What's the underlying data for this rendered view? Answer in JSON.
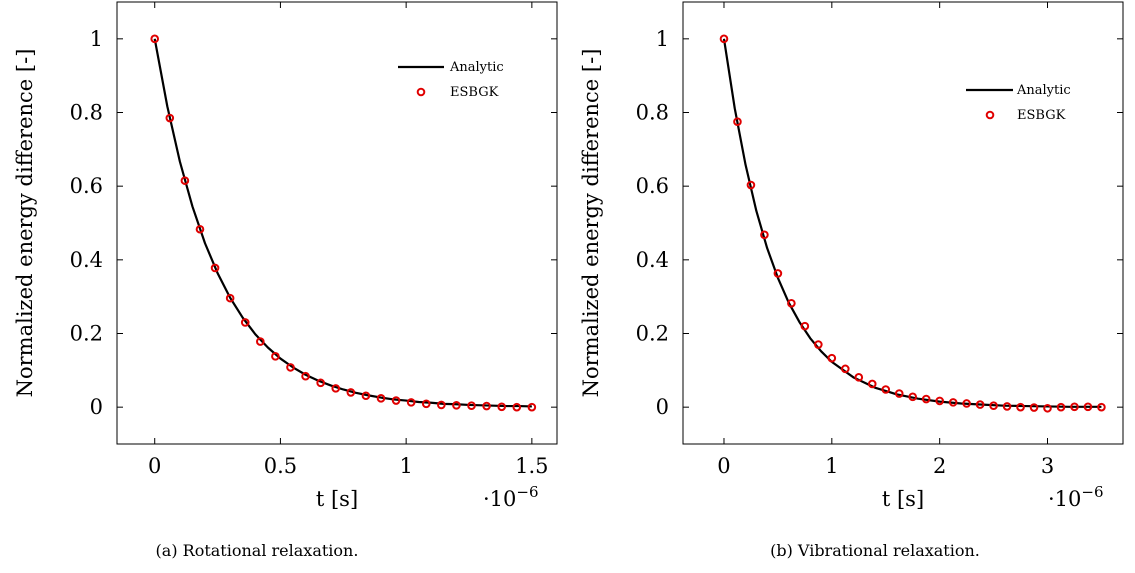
{
  "chart_data": [
    {
      "type": "line",
      "caption": "(a) Rotational relaxation.",
      "xlabel": "t [s]",
      "x_multiplier": "·10",
      "x_multiplier_exp": "−6",
      "ylabel": "Normalized energy difference [-]",
      "xlim": [
        -0.15,
        1.6
      ],
      "ylim": [
        -0.1,
        1.1
      ],
      "xticks": [
        0,
        0.5,
        1,
        1.5
      ],
      "xtick_labels": [
        "0",
        "0.5",
        "1",
        "1.5"
      ],
      "yticks": [
        0,
        0.2,
        0.4,
        0.6,
        0.8,
        1
      ],
      "ytick_labels": [
        "0",
        "0.2",
        "0.4",
        "0.6",
        "0.8",
        "1"
      ],
      "legend_position": "top-right",
      "grid": false,
      "series": [
        {
          "name": "Analytic",
          "kind": "line",
          "color": "#000000",
          "x": [
            0,
            0.05,
            0.1,
            0.15,
            0.2,
            0.25,
            0.3,
            0.35,
            0.4,
            0.45,
            0.5,
            0.55,
            0.6,
            0.65,
            0.7,
            0.75,
            0.8,
            0.85,
            0.9,
            0.95,
            1.0,
            1.05,
            1.1,
            1.15,
            1.2,
            1.25,
            1.3,
            1.35,
            1.4,
            1.45,
            1.5
          ],
          "y": [
            1.0,
            0.817,
            0.667,
            0.545,
            0.445,
            0.364,
            0.297,
            0.243,
            0.198,
            0.162,
            0.132,
            0.108,
            0.088,
            0.072,
            0.059,
            0.048,
            0.039,
            0.032,
            0.026,
            0.021,
            0.018,
            0.014,
            0.012,
            0.009,
            0.008,
            0.006,
            0.005,
            0.004,
            0.003,
            0.003,
            0.002
          ]
        },
        {
          "name": "ESBGK",
          "kind": "scatter",
          "color": "#e00000",
          "x": [
            0,
            0.06,
            0.12,
            0.18,
            0.24,
            0.3,
            0.36,
            0.42,
            0.48,
            0.54,
            0.6,
            0.66,
            0.72,
            0.78,
            0.84,
            0.9,
            0.96,
            1.02,
            1.08,
            1.14,
            1.2,
            1.26,
            1.32,
            1.38,
            1.44,
            1.5
          ],
          "y": [
            1.0,
            0.785,
            0.615,
            0.483,
            0.378,
            0.296,
            0.23,
            0.178,
            0.138,
            0.108,
            0.084,
            0.066,
            0.051,
            0.04,
            0.031,
            0.024,
            0.018,
            0.013,
            0.009,
            0.006,
            0.005,
            0.004,
            0.003,
            0.001,
            0.0,
            0.0
          ]
        }
      ]
    },
    {
      "type": "line",
      "caption": "(b) Vibrational relaxation.",
      "xlabel": "t [s]",
      "x_multiplier": "·10",
      "x_multiplier_exp": "−6",
      "ylabel": "Normalized energy difference [-]",
      "xlim": [
        -0.38,
        3.7
      ],
      "ylim": [
        -0.1,
        1.1
      ],
      "xticks": [
        0,
        1,
        2,
        3
      ],
      "xtick_labels": [
        "0",
        "1",
        "2",
        "3"
      ],
      "yticks": [
        0,
        0.2,
        0.4,
        0.6,
        0.8,
        1
      ],
      "ytick_labels": [
        "0",
        "0.2",
        "0.4",
        "0.6",
        "0.8",
        "1"
      ],
      "legend_position": "top-right",
      "grid": false,
      "series": [
        {
          "name": "Analytic",
          "kind": "line",
          "color": "#000000",
          "x": [
            0,
            0.1,
            0.2,
            0.3,
            0.4,
            0.5,
            0.6,
            0.7,
            0.8,
            0.9,
            1.0,
            1.2,
            1.4,
            1.6,
            1.8,
            2.0,
            2.2,
            2.4,
            2.6,
            2.8,
            3.0,
            3.2,
            3.5
          ],
          "y": [
            1.0,
            0.811,
            0.658,
            0.533,
            0.432,
            0.351,
            0.284,
            0.231,
            0.187,
            0.152,
            0.123,
            0.081,
            0.053,
            0.035,
            0.023,
            0.015,
            0.01,
            0.007,
            0.004,
            0.003,
            0.002,
            0.001,
            0.001
          ]
        },
        {
          "name": "ESBGK",
          "kind": "scatter",
          "color": "#e00000",
          "x": [
            0,
            0.125,
            0.25,
            0.375,
            0.5,
            0.625,
            0.75,
            0.875,
            1.0,
            1.125,
            1.25,
            1.375,
            1.5,
            1.625,
            1.75,
            1.875,
            2.0,
            2.125,
            2.25,
            2.375,
            2.5,
            2.625,
            2.75,
            2.875,
            3.0,
            3.125,
            3.25,
            3.375,
            3.5
          ],
          "y": [
            1.0,
            0.775,
            0.603,
            0.468,
            0.363,
            0.282,
            0.22,
            0.17,
            0.133,
            0.104,
            0.081,
            0.063,
            0.048,
            0.037,
            0.028,
            0.022,
            0.017,
            0.013,
            0.01,
            0.007,
            0.004,
            0.002,
            0.0,
            -0.001,
            -0.003,
            0.0,
            0.001,
            0.001,
            0.0
          ]
        }
      ]
    }
  ]
}
